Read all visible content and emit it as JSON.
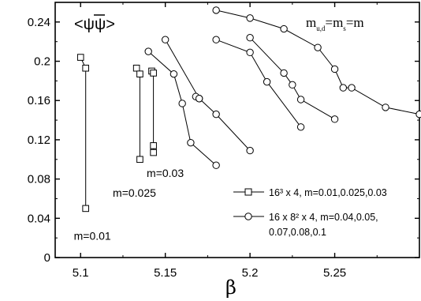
{
  "chart_data": {
    "type": "line",
    "title": "<ψψ>",
    "title_overbar_on_first_psi": true,
    "mass_relation": {
      "lhs": "m",
      "lhs_sub": "u,d",
      "mid": "=m",
      "mid_sub": "s",
      "rhs": "=m"
    },
    "xlabel": "β",
    "ylabel": "",
    "xlim": [
      5.085,
      5.3
    ],
    "ylim": [
      0,
      0.26
    ],
    "xticks": [
      5.1,
      5.15,
      5.2,
      5.25
    ],
    "xtick_labels": [
      "5.1",
      "5.15",
      "5.2",
      "5.25"
    ],
    "yticks": [
      0,
      0.04,
      0.08,
      0.12,
      0.16,
      0.2,
      0.24
    ],
    "ytick_labels": [
      "0",
      "0.04",
      "0.08",
      "0.12",
      "0.16",
      "0.2",
      "0.24"
    ],
    "grid": false,
    "legend_placement": "bottom-right",
    "legend": [
      {
        "marker": "square",
        "lines": [
          "16³ x 4, m=0.01,0.025,0.03"
        ]
      },
      {
        "marker": "circle",
        "lines": [
          "16 x 8² x 4, m=0.04,0.05,",
          "0.07,0.08,0.1"
        ]
      }
    ],
    "series": [
      {
        "marker": "square",
        "points": [
          [
            5.1,
            0.204
          ],
          [
            5.103,
            0.193
          ],
          [
            5.103,
            0.05
          ]
        ]
      },
      {
        "marker": "square",
        "points": [
          [
            5.133,
            0.193
          ],
          [
            5.135,
            0.187
          ],
          [
            5.135,
            0.1
          ]
        ]
      },
      {
        "marker": "square",
        "points": [
          [
            5.142,
            0.19
          ],
          [
            5.143,
            0.188
          ],
          [
            5.143,
            0.114
          ],
          [
            5.143,
            0.107
          ]
        ]
      },
      {
        "marker": "circle",
        "points": [
          [
            5.14,
            0.21
          ],
          [
            5.155,
            0.187
          ],
          [
            5.16,
            0.157
          ],
          [
            5.165,
            0.117
          ],
          [
            5.18,
            0.094
          ]
        ]
      },
      {
        "marker": "circle",
        "points": [
          [
            5.15,
            0.222
          ],
          [
            5.17,
            0.162
          ],
          [
            5.18,
            0.146
          ],
          [
            5.2,
            0.109
          ]
        ]
      },
      {
        "marker": "circle",
        "points": [
          [
            5.18,
            0.222
          ],
          [
            5.2,
            0.209
          ],
          [
            5.21,
            0.179
          ],
          [
            5.23,
            0.133
          ]
        ]
      },
      {
        "marker": "circle",
        "points": [
          [
            5.2,
            0.224
          ],
          [
            5.22,
            0.188
          ],
          [
            5.225,
            0.176
          ],
          [
            5.23,
            0.161
          ],
          [
            5.25,
            0.141
          ]
        ]
      },
      {
        "marker": "circle",
        "points": [
          [
            5.18,
            0.252
          ],
          [
            5.2,
            0.244
          ],
          [
            5.22,
            0.233
          ],
          [
            5.24,
            0.214
          ],
          [
            5.25,
            0.192
          ],
          [
            5.255,
            0.173
          ],
          [
            5.26,
            0.173
          ],
          [
            5.28,
            0.153
          ],
          [
            5.3,
            0.146
          ]
        ]
      },
      {
        "marker": "circle",
        "points": [
          [
            5.168,
            0.164
          ],
          [
            5.17,
            0.162
          ]
        ]
      }
    ],
    "annotations": [
      {
        "text": "m=0.01",
        "x": 5.096,
        "y": 0.022
      },
      {
        "text": "m=0.025",
        "x": 5.119,
        "y": 0.066
      },
      {
        "text": "m=0.03",
        "x": 5.139,
        "y": 0.086
      }
    ]
  }
}
